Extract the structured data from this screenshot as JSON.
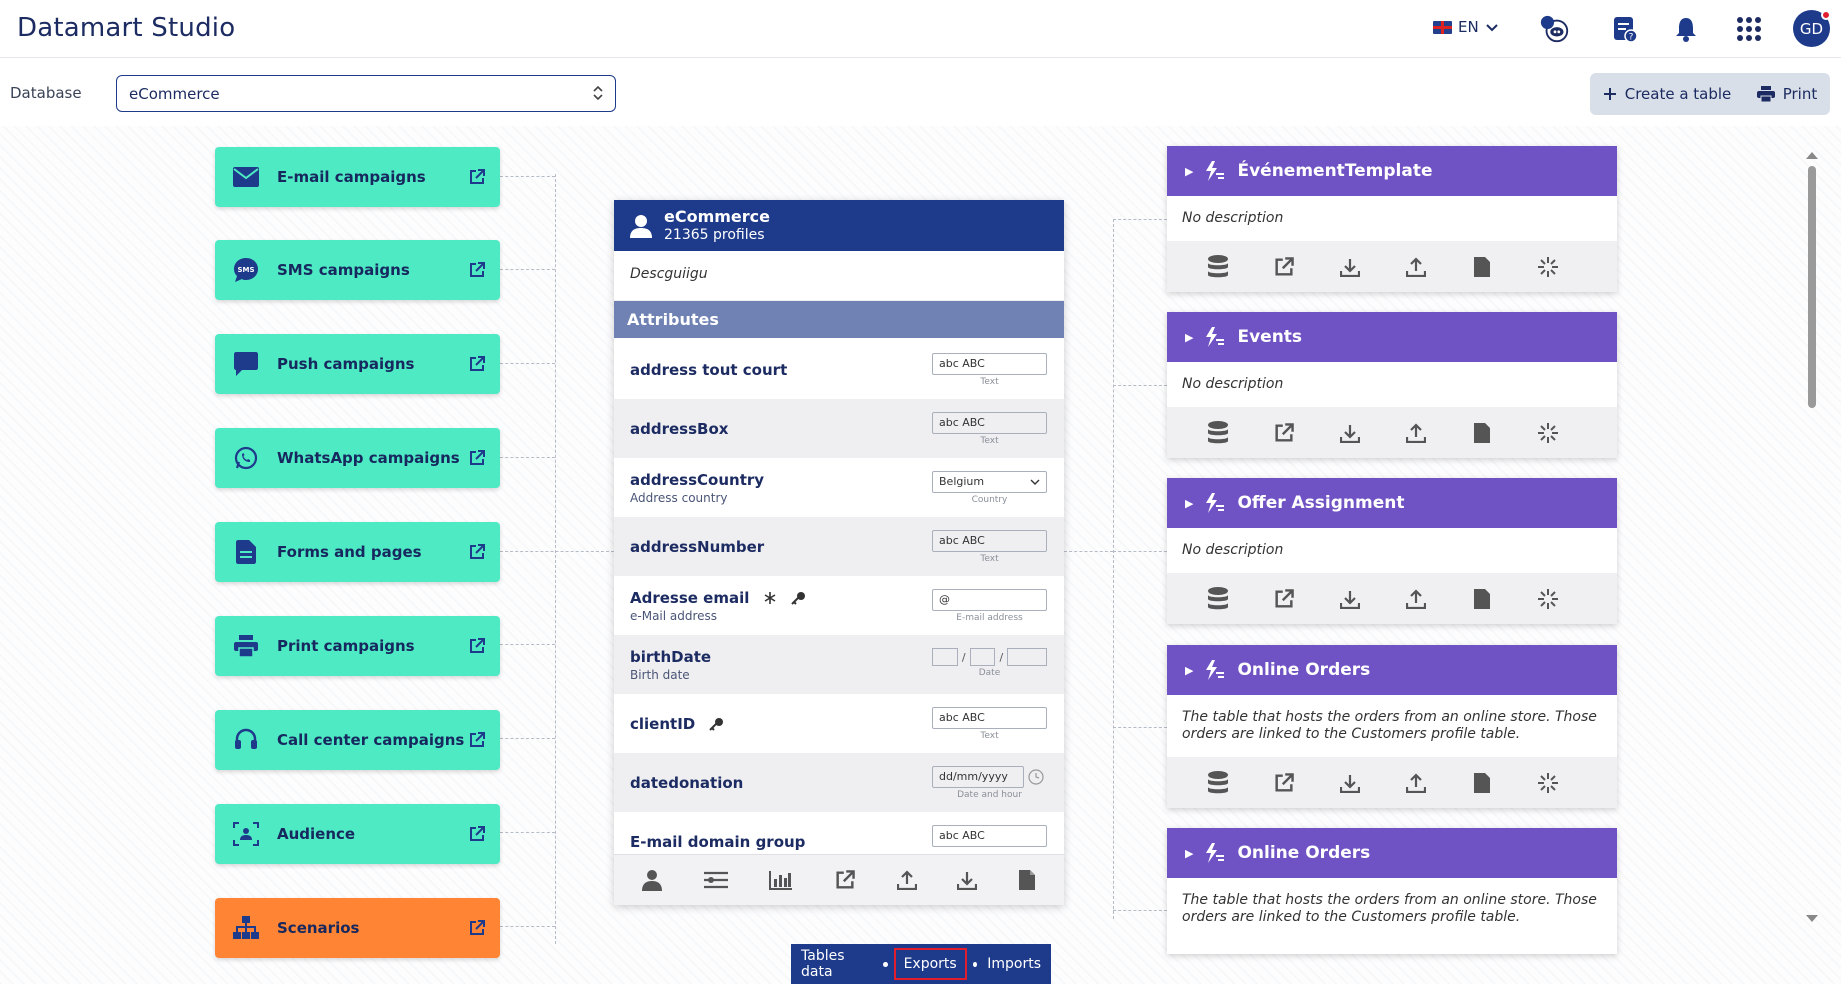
{
  "app": {
    "title": "Datamart Studio"
  },
  "header": {
    "language": "EN",
    "avatar_initials": "GD"
  },
  "toolbar": {
    "database_label": "Database",
    "database_value": "eCommerce",
    "create_table": "Create a table",
    "print": "Print"
  },
  "channels": [
    {
      "label": "E-mail campaigns",
      "icon": "envelope-icon",
      "color": "#4eeac4"
    },
    {
      "label": "SMS campaigns",
      "icon": "sms-bubble-icon",
      "color": "#4eeac4"
    },
    {
      "label": "Push campaigns",
      "icon": "chat-bubble-icon",
      "color": "#4eeac4"
    },
    {
      "label": "WhatsApp campaigns",
      "icon": "whatsapp-icon",
      "color": "#4eeac4"
    },
    {
      "label": "Forms and pages",
      "icon": "document-icon",
      "color": "#4eeac4"
    },
    {
      "label": "Print campaigns",
      "icon": "printer-icon",
      "color": "#4eeac4"
    },
    {
      "label": "Call center campaigns",
      "icon": "headset-icon",
      "color": "#4eeac4"
    },
    {
      "label": "Audience",
      "icon": "audience-icon",
      "color": "#4eeac4"
    },
    {
      "label": "Scenarios",
      "icon": "hierarchy-icon",
      "color": "#ff8433"
    }
  ],
  "central": {
    "title": "eCommerce",
    "profiles": "21365 profiles",
    "description": "Descguiigu",
    "attributes_label": "Attributes",
    "attributes": [
      {
        "name": "address tout court",
        "sub": "",
        "field_value": "abc ABC",
        "field_caption": "Text"
      },
      {
        "name": "addressBox",
        "sub": "",
        "field_value": "abc ABC",
        "field_caption": "Text"
      },
      {
        "name": "addressCountry",
        "sub": "Address country",
        "field_value": "Belgium",
        "field_caption": "Country"
      },
      {
        "name": "addressNumber",
        "sub": "",
        "field_value": "abc ABC",
        "field_caption": "Text"
      },
      {
        "name": "Adresse email",
        "sub": "e-Mail address",
        "field_value": "@",
        "field_caption": "E-mail address"
      },
      {
        "name": "birthDate",
        "sub": "Birth date",
        "field_value": "",
        "field_caption": "Date"
      },
      {
        "name": "clientID",
        "sub": "",
        "field_value": "abc ABC",
        "field_caption": "Text"
      },
      {
        "name": "datedonation",
        "sub": "",
        "field_value": "dd/mm/yyyy",
        "field_caption": "Date and hour"
      },
      {
        "name": "E-mail domain group",
        "sub": "",
        "field_value": "abc ABC",
        "field_caption": ""
      }
    ]
  },
  "tables": [
    {
      "name": "ÉvénementTemplate",
      "description": "No description"
    },
    {
      "name": "Events",
      "description": "No description"
    },
    {
      "name": "Offer Assignment",
      "description": "No description"
    },
    {
      "name": "Online Orders",
      "description": "The table that hosts the orders from an online store. Those orders are linked to the Customers profile table."
    },
    {
      "name": "Online Orders",
      "description": "The table that hosts the orders from an online store. Those orders are linked to the Customers profile table."
    }
  ],
  "bottom_tabs": {
    "tables_data": "Tables data",
    "exports": "Exports",
    "imports": "Imports"
  }
}
